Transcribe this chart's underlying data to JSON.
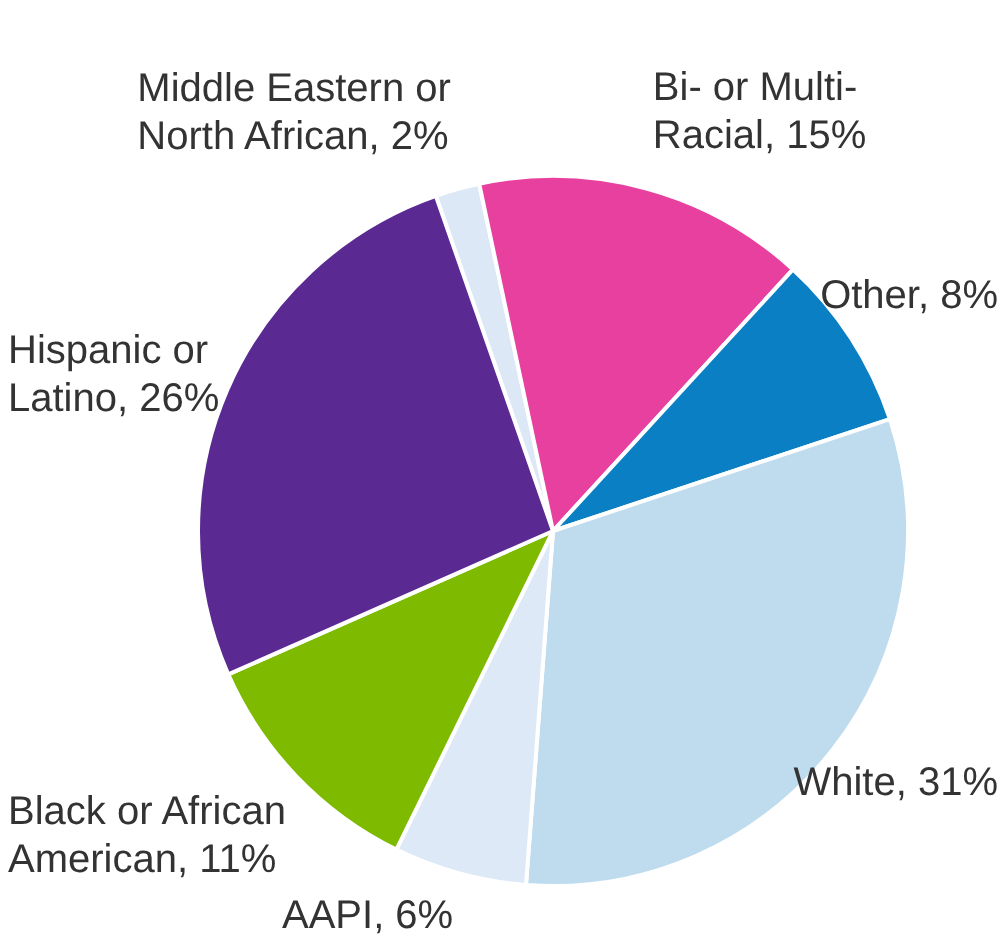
{
  "chart_data": {
    "type": "pie",
    "categories": [
      "Middle Eastern or North African",
      "Bi- or Multi-Racial",
      "Other",
      "White",
      "AAPI",
      "Black or African American",
      "Hispanic or Latino"
    ],
    "values": [
      2,
      15,
      8,
      31,
      6,
      11,
      26
    ],
    "value_labels": [
      "2%",
      "15%",
      "8%",
      "31%",
      "6%",
      "11%",
      "26%"
    ],
    "colors": [
      "#dce8f5",
      "#e8409f",
      "#0b7fc4",
      "#bfdcef",
      "#dde9f6",
      "#7dba00",
      "#5b2992"
    ],
    "legend": false
  }
}
